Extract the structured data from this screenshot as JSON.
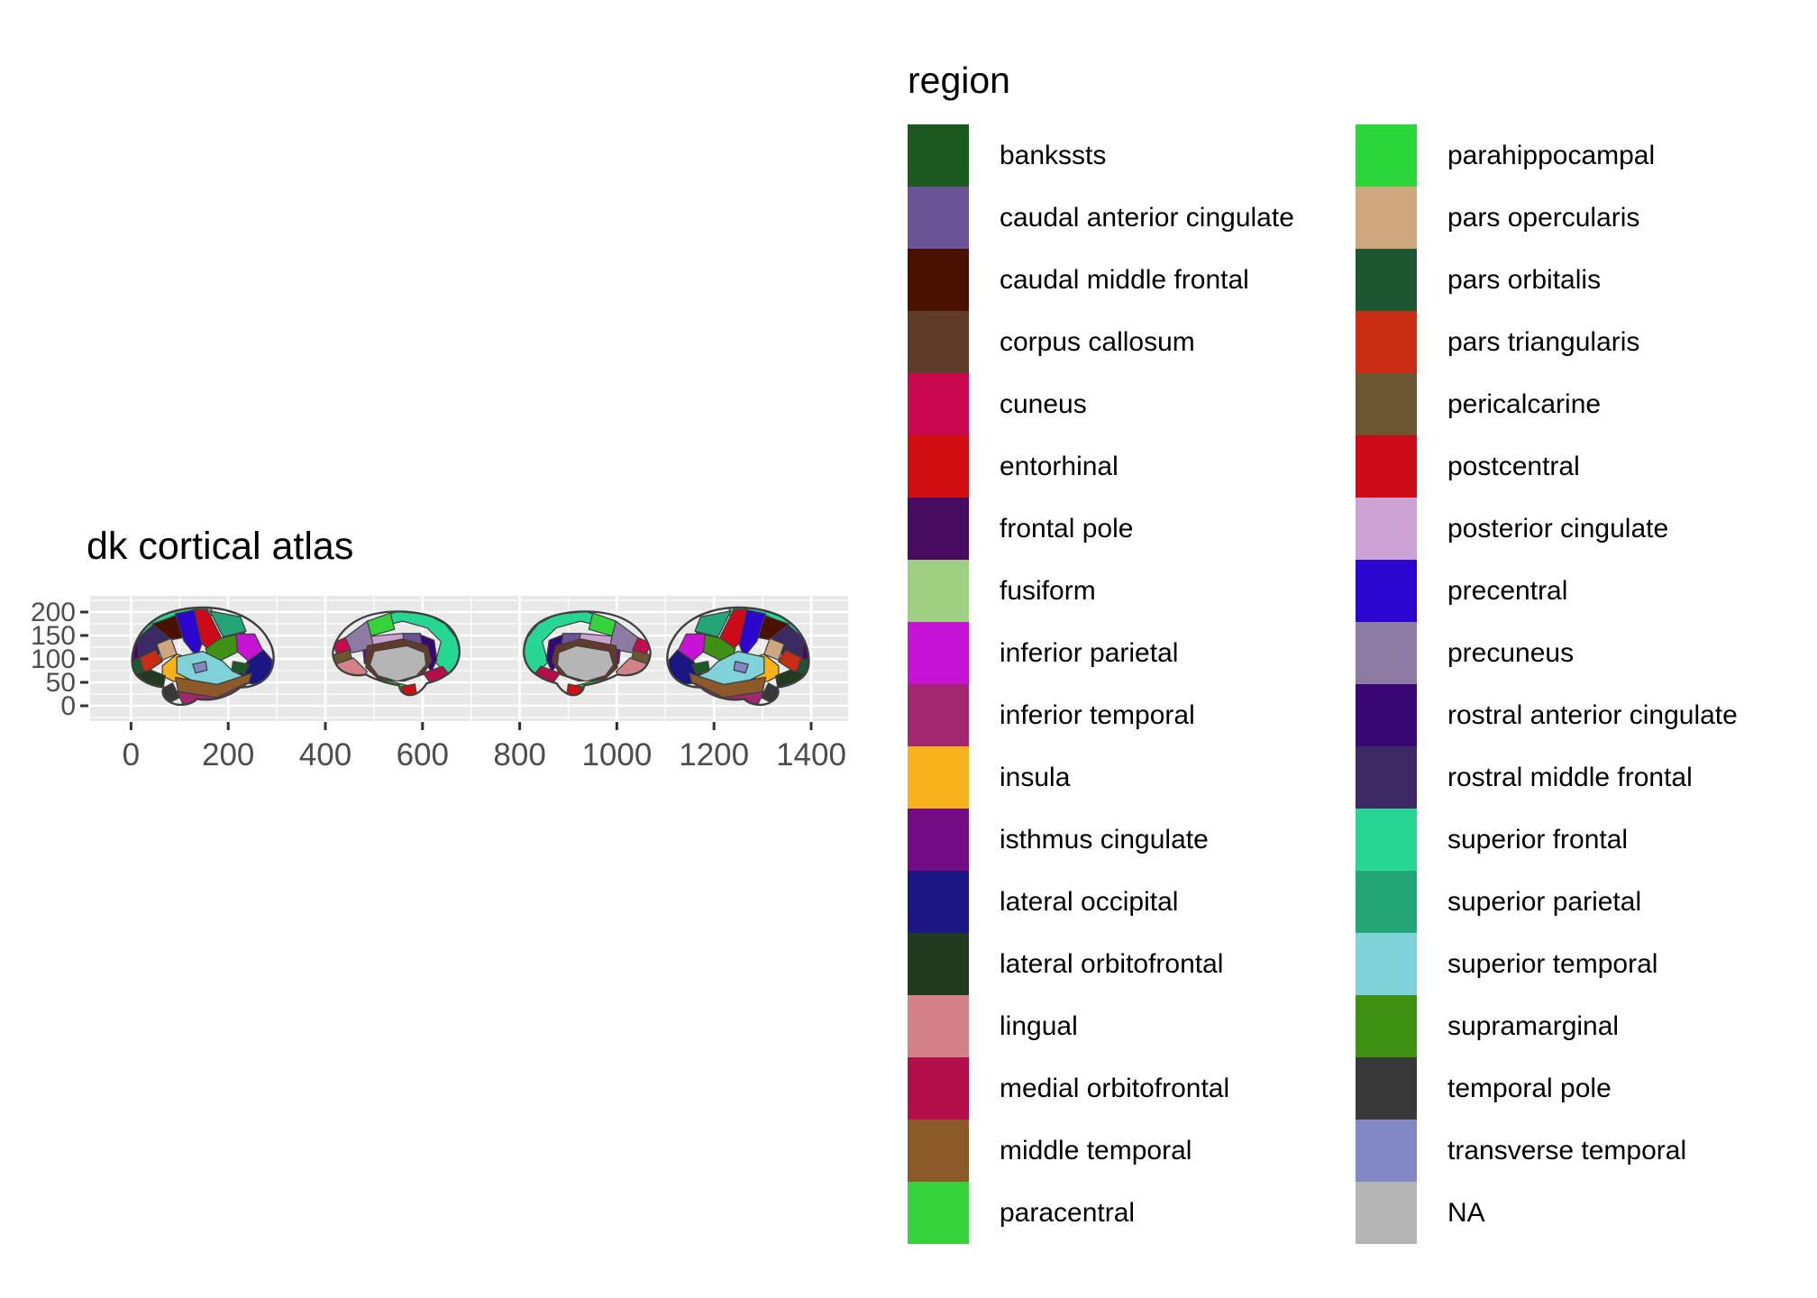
{
  "figure": {
    "title": "dk cortical atlas",
    "legend_title": "region"
  },
  "style": {
    "background": "#ffffff",
    "panel_bg": "#e8e8e8",
    "grid_color": "#ffffff",
    "axis_text_color": "#4d4d4d",
    "tick_color": "#333333",
    "region_border": "#3f3f3f"
  },
  "chart_data": {
    "type": "map",
    "subtype": "brain cortical atlas polygon map (ggseg-style, 4 hemisphere views)",
    "title": "dk cortical atlas",
    "legend_title": "region",
    "legend_position": "right",
    "legend_columns": 2,
    "grid": true,
    "views": [
      "left hemisphere lateral",
      "left hemisphere medial",
      "right hemisphere medial",
      "right hemisphere lateral"
    ],
    "x_ticks": [
      0,
      200,
      400,
      600,
      800,
      1000,
      1200,
      1400
    ],
    "y_ticks": [
      0,
      50,
      100,
      150,
      200
    ],
    "xlim": [
      -85,
      1476
    ],
    "ylim": [
      -33,
      235
    ],
    "regions": [
      {
        "label": "bankssts",
        "color": "#1d5a21"
      },
      {
        "label": "caudal anterior cingulate",
        "color": "#6a5496"
      },
      {
        "label": "caudal middle frontal",
        "color": "#4a1102"
      },
      {
        "label": "corpus callosum",
        "color": "#603b2a"
      },
      {
        "label": "cuneus",
        "color": "#c9084f"
      },
      {
        "label": "entorhinal",
        "color": "#d00d11"
      },
      {
        "label": "frontal pole",
        "color": "#470c5f"
      },
      {
        "label": "fusiform",
        "color": "#9fd07f"
      },
      {
        "label": "inferior parietal",
        "color": "#c713d6"
      },
      {
        "label": "inferior temporal",
        "color": "#a32670"
      },
      {
        "label": "insula",
        "color": "#f8b21b"
      },
      {
        "label": "isthmus cingulate",
        "color": "#720b84"
      },
      {
        "label": "lateral occipital",
        "color": "#1c1584"
      },
      {
        "label": "lateral orbitofrontal",
        "color": "#223a20"
      },
      {
        "label": "lingual",
        "color": "#d3828a"
      },
      {
        "label": "medial orbitofrontal",
        "color": "#b30e49"
      },
      {
        "label": "middle temporal",
        "color": "#8c5a28"
      },
      {
        "label": "paracentral",
        "color": "#35d23c"
      },
      {
        "label": "parahippocampal",
        "color": "#2ad639"
      },
      {
        "label": "pars opercularis",
        "color": "#cfa77f"
      },
      {
        "label": "pars orbitalis",
        "color": "#1d5631"
      },
      {
        "label": "pars triangularis",
        "color": "#c92d14"
      },
      {
        "label": "pericalcarine",
        "color": "#6a5730"
      },
      {
        "label": "postcentral",
        "color": "#cc0a18"
      },
      {
        "label": "posterior cingulate",
        "color": "#cba2d3"
      },
      {
        "label": "precentral",
        "color": "#2b06cf"
      },
      {
        "label": "precuneus",
        "color": "#8d7ba4"
      },
      {
        "label": "rostral anterior cingulate",
        "color": "#390773"
      },
      {
        "label": "rostral middle frontal",
        "color": "#3b2a63"
      },
      {
        "label": "superior frontal",
        "color": "#28d694"
      },
      {
        "label": "superior parietal",
        "color": "#23a577"
      },
      {
        "label": "superior temporal",
        "color": "#7fd3d8"
      },
      {
        "label": "supramarginal",
        "color": "#3f9114"
      },
      {
        "label": "temporal pole",
        "color": "#383838"
      },
      {
        "label": "transverse temporal",
        "color": "#8287c5"
      },
      {
        "label": "NA",
        "color": "#b5b5b5"
      }
    ]
  }
}
